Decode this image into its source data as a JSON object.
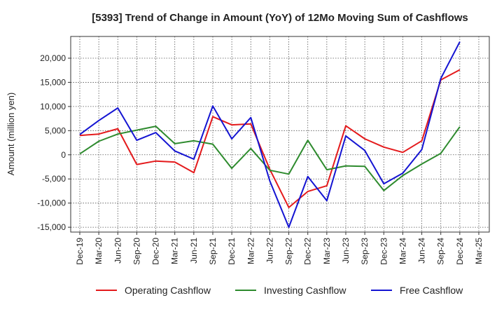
{
  "chart_data": {
    "type": "line",
    "title": "[5393]  Trend of Change in Amount (YoY) of 12Mo Moving Sum of Cashflows",
    "xlabel": "",
    "ylabel": "Amount (million yen)",
    "ylim": [
      -16000,
      24500
    ],
    "yticks": [
      20000,
      15000,
      10000,
      5000,
      0,
      -5000,
      -10000,
      -15000
    ],
    "ytick_labels": [
      "20,000",
      "15,000",
      "10,000",
      "5,000",
      "0",
      "-5,000",
      "-10,000",
      "-15,000"
    ],
    "x": [
      "Dec-19",
      "Mar-20",
      "Jun-20",
      "Sep-20",
      "Dec-20",
      "Mar-21",
      "Jun-21",
      "Sep-21",
      "Dec-21",
      "Mar-22",
      "Jun-22",
      "Sep-22",
      "Dec-22",
      "Mar-23",
      "Jun-23",
      "Sep-23",
      "Dec-23",
      "Mar-24",
      "Jun-24",
      "Sep-24",
      "Dec-24",
      "Mar-25"
    ],
    "grid": true,
    "legend_position": "bottom",
    "series": [
      {
        "name": "Operating Cashflow",
        "color": "#e41a1c",
        "values": [
          4000,
          4300,
          5400,
          -2000,
          -1300,
          -1500,
          -3700,
          7900,
          6200,
          6400,
          -3000,
          -10900,
          -7600,
          -6400,
          6000,
          3300,
          1600,
          500,
          2900,
          15500,
          17600,
          null
        ]
      },
      {
        "name": "Investing Cashflow",
        "color": "#2e8b2e",
        "values": [
          200,
          2800,
          4300,
          5100,
          5900,
          2300,
          2900,
          2200,
          -2800,
          1300,
          -3200,
          -4000,
          3000,
          -3100,
          -2300,
          -2400,
          -7400,
          -4300,
          -1900,
          300,
          5800,
          null
        ]
      },
      {
        "name": "Free Cashflow",
        "color": "#1414d2",
        "values": [
          4200,
          7100,
          9700,
          3000,
          4600,
          800,
          -900,
          10100,
          3300,
          7700,
          -5400,
          -15000,
          -4500,
          -9500,
          3900,
          900,
          -6000,
          -3800,
          1100,
          15800,
          23400,
          null
        ]
      }
    ]
  }
}
